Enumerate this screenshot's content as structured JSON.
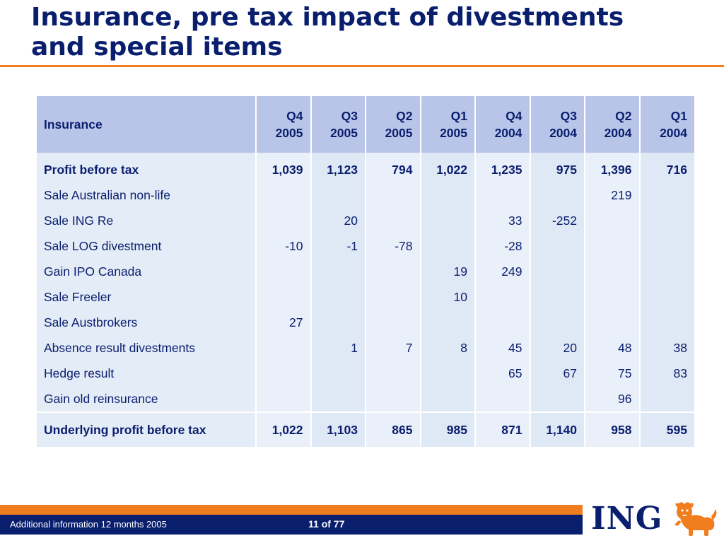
{
  "slide": {
    "title_line1": "Insurance, pre tax impact of divestments",
    "title_line2": "and special items"
  },
  "table": {
    "header": {
      "label": "Insurance",
      "columns": [
        {
          "q": "Q4",
          "y": "2005"
        },
        {
          "q": "Q3",
          "y": "2005"
        },
        {
          "q": "Q2",
          "y": "2005"
        },
        {
          "q": "Q1",
          "y": "2005"
        },
        {
          "q": "Q4",
          "y": "2004"
        },
        {
          "q": "Q3",
          "y": "2004"
        },
        {
          "q": "Q2",
          "y": "2004"
        },
        {
          "q": "Q1",
          "y": "2004"
        }
      ]
    },
    "rows": [
      {
        "label": "Profit before tax",
        "values": [
          "1,039",
          "1,123",
          "794",
          "1,022",
          "1,235",
          "975",
          "1,396",
          "716"
        ]
      },
      {
        "label": "Sale Australian non-life",
        "values": [
          "",
          "",
          "",
          "",
          "",
          "",
          "219",
          ""
        ]
      },
      {
        "label": "Sale ING Re",
        "values": [
          "",
          "20",
          "",
          "",
          "33",
          "-252",
          "",
          ""
        ]
      },
      {
        "label": "Sale LOG divestment",
        "values": [
          "-10",
          "-1",
          "-78",
          "",
          "-28",
          "",
          "",
          ""
        ]
      },
      {
        "label": "Gain IPO Canada",
        "values": [
          "",
          "",
          "",
          "19",
          "249",
          "",
          "",
          ""
        ]
      },
      {
        "label": "Sale Freeler",
        "values": [
          "",
          "",
          "",
          "10",
          "",
          "",
          "",
          ""
        ]
      },
      {
        "label": "Sale Austbrokers",
        "values": [
          "27",
          "",
          "",
          "",
          "",
          "",
          "",
          ""
        ]
      },
      {
        "label": "Absence result divestments",
        "values": [
          "",
          "1",
          "7",
          "8",
          "45",
          "20",
          "48",
          "38"
        ]
      },
      {
        "label": "Hedge result",
        "values": [
          "",
          "",
          "",
          "",
          "65",
          "67",
          "75",
          "83"
        ]
      },
      {
        "label": "Gain old reinsurance",
        "values": [
          "",
          "",
          "",
          "",
          "",
          "",
          "96",
          ""
        ]
      }
    ],
    "total": {
      "label": "Underlying profit before tax",
      "values": [
        "1,022",
        "1,103",
        "865",
        "985",
        "871",
        "1,140",
        "958",
        "595"
      ]
    }
  },
  "footer": {
    "left_text": "Additional information 12 months 2005",
    "page": "11 of 77",
    "logo_text": "ING",
    "logo_icon": "lion-icon",
    "colors": {
      "orange": "#f07d1e",
      "navy": "#0a1e6e"
    }
  }
}
